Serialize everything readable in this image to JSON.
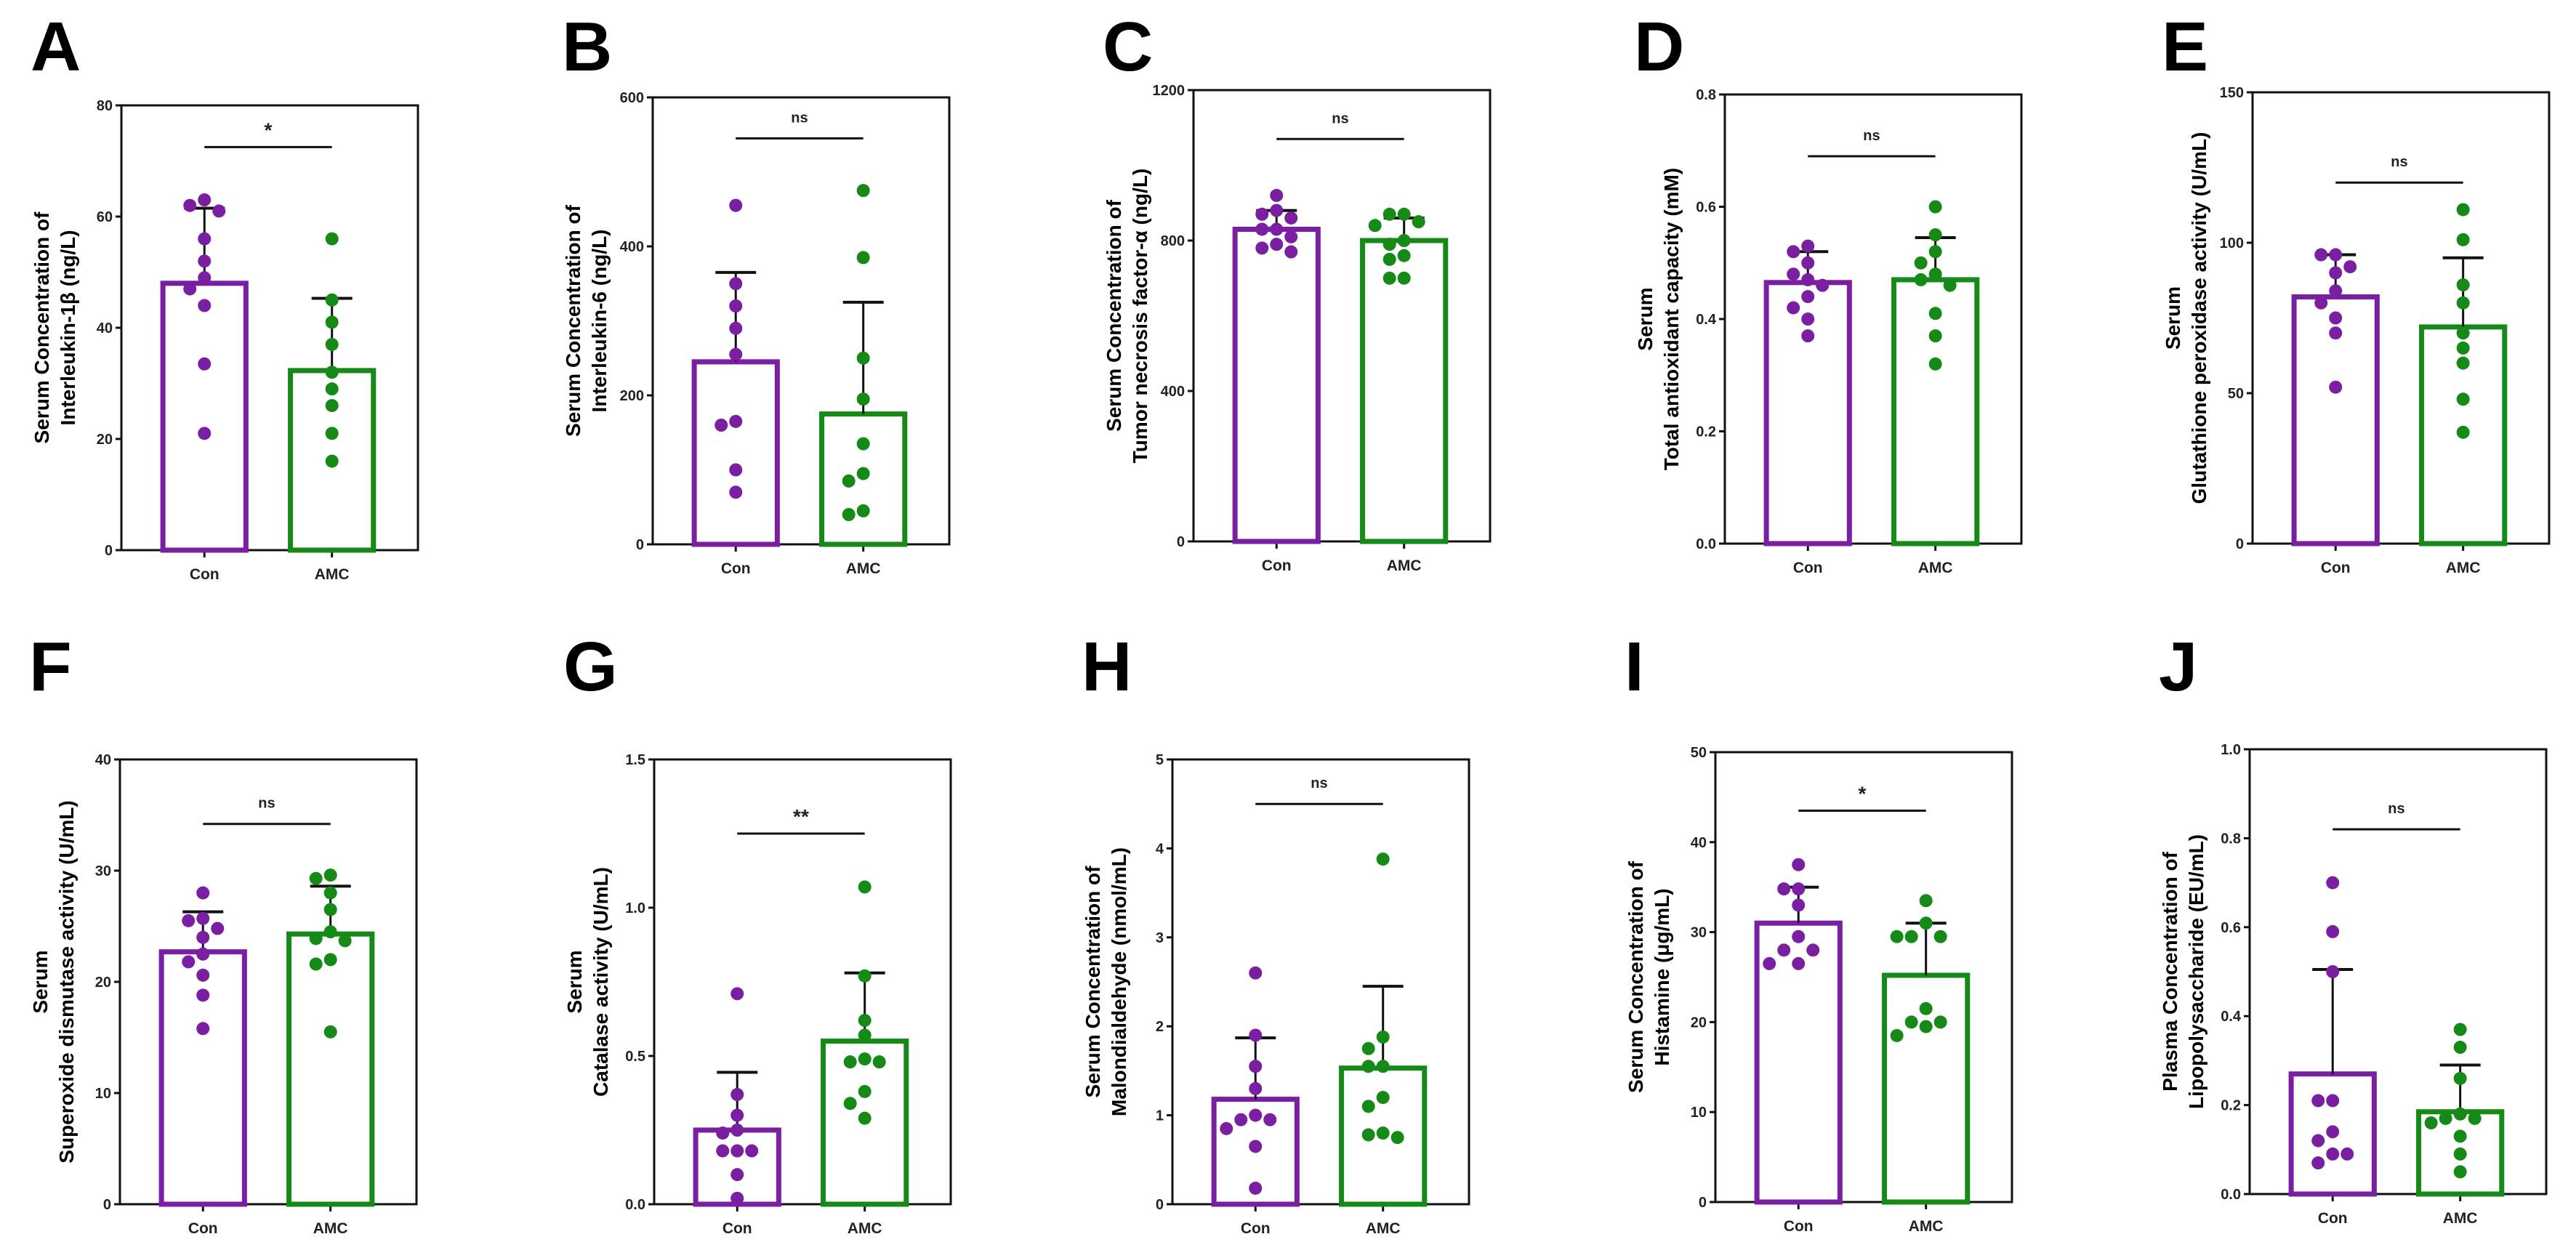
{
  "colors": {
    "con": "#7b1fa2",
    "amc": "#158a17",
    "axis": "#111111"
  },
  "chart_data": [
    {
      "panel": "A",
      "type": "bar",
      "categories": [
        "Con",
        "AMC"
      ],
      "ylabel": [
        "Serum Concentration of",
        "Interleukin-1β (ng/L)"
      ],
      "ylim": [
        0,
        80
      ],
      "yticks": [
        0,
        20,
        40,
        60,
        80
      ],
      "series": [
        {
          "name": "Con",
          "mean": 48,
          "err_upper": 61.5,
          "points": [
            63,
            62,
            61,
            56,
            52,
            49,
            47,
            44,
            33.5,
            21
          ]
        },
        {
          "name": "AMC",
          "mean": 32.3,
          "err_upper": 45.3,
          "points": [
            56,
            45,
            41,
            37,
            32,
            29,
            26,
            21,
            16
          ]
        }
      ],
      "significance": {
        "label": "*",
        "y": 72.5
      }
    },
    {
      "panel": "B",
      "type": "bar",
      "categories": [
        "Con",
        "AMC"
      ],
      "ylabel": [
        "Serum Concentration of",
        "Interleukin-6 (ng/L)"
      ],
      "ylim": [
        0,
        600
      ],
      "yticks": [
        0,
        200,
        400,
        600
      ],
      "series": [
        {
          "name": "Con",
          "mean": 245,
          "err_upper": 365,
          "points": [
            455,
            350,
            320,
            290,
            255,
            165,
            160,
            100,
            70
          ]
        },
        {
          "name": "AMC",
          "mean": 175,
          "err_upper": 325,
          "points": [
            475,
            385,
            250,
            195,
            135,
            95,
            85,
            45,
            40
          ]
        }
      ],
      "significance": {
        "label": "ns",
        "y": 545
      }
    },
    {
      "panel": "C",
      "type": "bar",
      "categories": [
        "Con",
        "AMC"
      ],
      "ylabel": [
        "Serum Concentration of",
        "Tumor necrosis factor-α (ng/L)"
      ],
      "ylim": [
        0,
        1200
      ],
      "yticks": [
        0,
        400,
        800,
        1200
      ],
      "series": [
        {
          "name": "Con",
          "mean": 830,
          "err_upper": 880,
          "points": [
            920,
            880,
            870,
            860,
            830,
            830,
            810,
            790,
            780,
            770
          ]
        },
        {
          "name": "AMC",
          "mean": 800,
          "err_upper": 860,
          "points": [
            870,
            870,
            850,
            840,
            800,
            790,
            760,
            750,
            700,
            700
          ]
        }
      ],
      "significance": {
        "label": "ns",
        "y": 1070
      }
    },
    {
      "panel": "D",
      "type": "bar",
      "categories": [
        "Con",
        "AMC"
      ],
      "ylabel": [
        "Serum",
        "Total antioxidant capacity (mM)"
      ],
      "ylim": [
        0,
        0.8
      ],
      "yticks": [
        0,
        0.2,
        0.4,
        0.6,
        0.8
      ],
      "series": [
        {
          "name": "Con",
          "mean": 0.465,
          "err_upper": 0.52,
          "points": [
            0.53,
            0.52,
            0.5,
            0.48,
            0.47,
            0.46,
            0.44,
            0.42,
            0.4,
            0.37
          ]
        },
        {
          "name": "AMC",
          "mean": 0.47,
          "err_upper": 0.545,
          "points": [
            0.6,
            0.55,
            0.52,
            0.5,
            0.48,
            0.47,
            0.46,
            0.41,
            0.37,
            0.32
          ]
        }
      ],
      "significance": {
        "label": "ns",
        "y": 0.69
      }
    },
    {
      "panel": "E",
      "type": "bar",
      "categories": [
        "Con",
        "AMC"
      ],
      "ylabel": [
        "Serum",
        "Glutathione peroxidase activity (U/mL)"
      ],
      "ylim": [
        0,
        150
      ],
      "yticks": [
        0,
        50,
        100,
        150
      ],
      "series": [
        {
          "name": "Con",
          "mean": 82,
          "err_upper": 96,
          "points": [
            96,
            96,
            92,
            90,
            84,
            80,
            75,
            70,
            52
          ]
        },
        {
          "name": "AMC",
          "mean": 72,
          "err_upper": 95,
          "points": [
            111,
            101,
            86,
            80,
            70,
            65,
            60,
            48,
            37
          ]
        }
      ],
      "significance": {
        "label": "ns",
        "y": 120
      }
    },
    {
      "panel": "F",
      "type": "bar",
      "categories": [
        "Con",
        "AMC"
      ],
      "ylabel": [
        "Serum",
        "Superoxide dismutase activity (U/mL)"
      ],
      "ylim": [
        0,
        40
      ],
      "yticks": [
        0,
        10,
        20,
        30,
        40
      ],
      "series": [
        {
          "name": "Con",
          "mean": 22.7,
          "err_upper": 26.3,
          "points": [
            28,
            25.7,
            25.5,
            24.8,
            24,
            22.5,
            21.8,
            20.6,
            18.8,
            15.8
          ]
        },
        {
          "name": "AMC",
          "mean": 24.3,
          "err_upper": 28.6,
          "points": [
            29.6,
            29.3,
            28,
            26.5,
            24.5,
            23.9,
            23.7,
            22,
            21.6,
            15.5
          ]
        }
      ],
      "significance": {
        "label": "ns",
        "y": 34.2
      }
    },
    {
      "panel": "G",
      "type": "bar",
      "categories": [
        "Con",
        "AMC"
      ],
      "ylabel": [
        "Serum",
        "Catalase activity (U/mL)"
      ],
      "ylim": [
        0,
        1.5
      ],
      "yticks": [
        0,
        0.5,
        1.0,
        1.5
      ],
      "tick_decimals": 1,
      "series": [
        {
          "name": "Con",
          "mean": 0.25,
          "err_upper": 0.445,
          "points": [
            0.71,
            0.37,
            0.3,
            0.25,
            0.24,
            0.18,
            0.18,
            0.18,
            0.1,
            0.02
          ]
        },
        {
          "name": "AMC",
          "mean": 0.55,
          "err_upper": 0.78,
          "points": [
            1.07,
            0.77,
            0.62,
            0.57,
            0.49,
            0.48,
            0.48,
            0.38,
            0.34,
            0.29
          ]
        }
      ],
      "significance": {
        "label": "**",
        "y": 1.25
      }
    },
    {
      "panel": "H",
      "type": "bar",
      "categories": [
        "Con",
        "AMC"
      ],
      "ylabel": [
        "Serum Concentration of",
        "Malondialdehyde (nmol/mL)"
      ],
      "ylim": [
        0,
        5
      ],
      "yticks": [
        0,
        1,
        2,
        3,
        4,
        5
      ],
      "series": [
        {
          "name": "Con",
          "mean": 1.18,
          "err_upper": 1.87,
          "points": [
            2.6,
            1.9,
            1.55,
            1.3,
            1.0,
            0.95,
            0.95,
            0.85,
            0.65,
            0.18
          ]
        },
        {
          "name": "AMC",
          "mean": 1.53,
          "err_upper": 2.45,
          "points": [
            3.88,
            1.88,
            1.75,
            1.55,
            1.55,
            1.2,
            1.1,
            0.8,
            0.78,
            0.75
          ]
        }
      ],
      "significance": {
        "label": "ns",
        "y": 4.5
      }
    },
    {
      "panel": "I",
      "type": "bar",
      "categories": [
        "Con",
        "AMC"
      ],
      "ylabel": [
        "Serum Concentration of",
        "Histamine (μg/mL)"
      ],
      "ylim": [
        0,
        50
      ],
      "yticks": [
        0,
        10,
        20,
        30,
        40,
        50
      ],
      "series": [
        {
          "name": "Con",
          "mean": 31,
          "err_upper": 35,
          "points": [
            37.5,
            34.8,
            34.8,
            33,
            29.5,
            28,
            28,
            26.5,
            26.5
          ]
        },
        {
          "name": "AMC",
          "mean": 25.2,
          "err_upper": 31,
          "points": [
            33.5,
            31,
            29.5,
            29.5,
            29.5,
            21.5,
            20,
            20,
            19.5,
            18.5
          ]
        }
      ],
      "significance": {
        "label": "*",
        "y": 43.5
      }
    },
    {
      "panel": "J",
      "type": "bar",
      "categories": [
        "Con",
        "AMC"
      ],
      "ylabel": [
        "Plasma Concentration of",
        "Lipopolysaccharide (EU/mL)"
      ],
      "ylim": [
        0,
        1.0
      ],
      "yticks": [
        0,
        0.2,
        0.4,
        0.6,
        0.8,
        1.0
      ],
      "tick_decimals": 1,
      "series": [
        {
          "name": "Con",
          "mean": 0.27,
          "err_upper": 0.505,
          "points": [
            0.7,
            0.59,
            0.5,
            0.21,
            0.21,
            0.14,
            0.12,
            0.09,
            0.09,
            0.07
          ]
        },
        {
          "name": "AMC",
          "mean": 0.185,
          "err_upper": 0.29,
          "points": [
            0.37,
            0.33,
            0.26,
            0.18,
            0.17,
            0.17,
            0.16,
            0.13,
            0.09,
            0.05
          ]
        }
      ],
      "significance": {
        "label": "ns",
        "y": 0.82
      }
    }
  ]
}
